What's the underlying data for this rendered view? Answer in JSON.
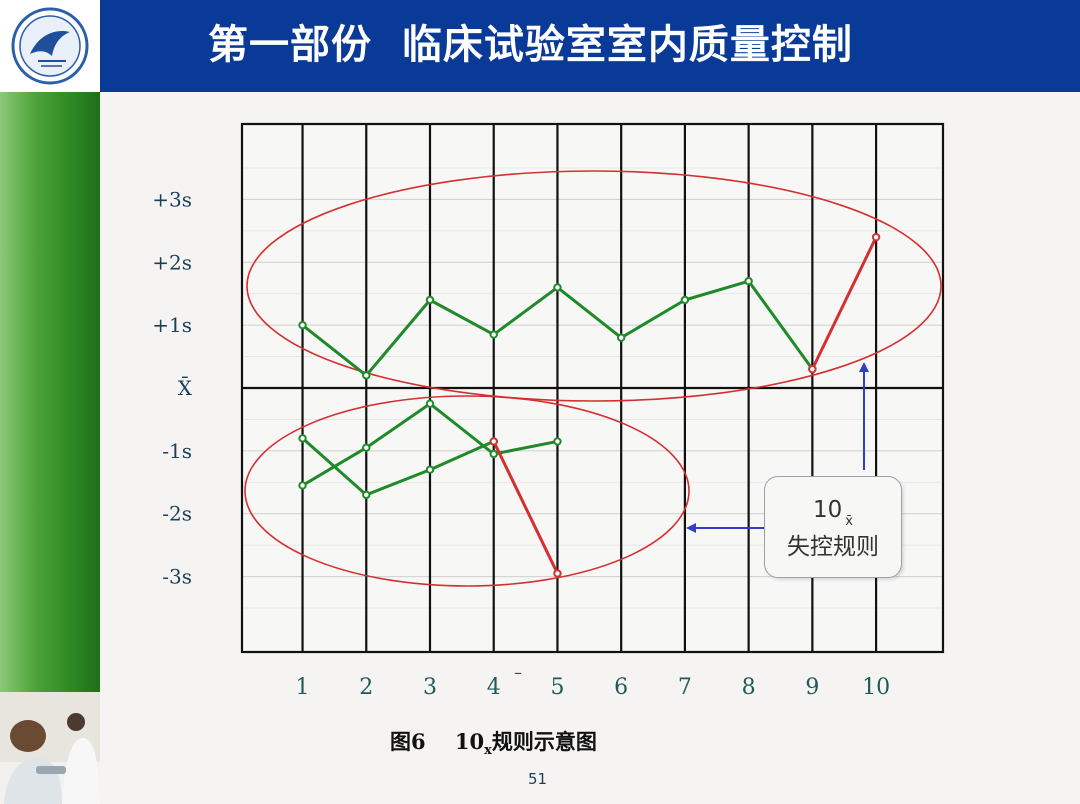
{
  "header": {
    "title": "第一部份  临床试验室室内质量控制",
    "logo_icon": "university-seal-logo"
  },
  "chart_data": {
    "type": "line",
    "x": [
      1,
      2,
      3,
      4,
      5,
      6,
      7,
      8,
      9,
      10
    ],
    "x_tick_labels": [
      "1",
      "2",
      "3",
      "4",
      "5",
      "6",
      "7",
      "8",
      "9",
      "10"
    ],
    "y_tick_labels": [
      "+3s",
      "+2s",
      "+1s",
      "X̄",
      "-1s",
      "-2s",
      "-3s"
    ],
    "y_tick_values": [
      3,
      2,
      1,
      0,
      -1,
      -2,
      -3
    ],
    "ylim": [
      -4.2,
      4.2
    ],
    "xlim": [
      0.05,
      11.05
    ],
    "grid": true,
    "series": [
      {
        "color": "#1f8a2a",
        "x": [
          1,
          2,
          3,
          4,
          5,
          6,
          7,
          8,
          9
        ],
        "y": [
          1.0,
          0.2,
          1.4,
          0.85,
          1.6,
          0.8,
          1.4,
          1.7,
          0.3
        ]
      },
      {
        "color": "#1f8a2a",
        "x": [
          1,
          2,
          3,
          4,
          5
        ],
        "y": [
          -1.55,
          -0.95,
          -0.25,
          -1.05,
          -0.85
        ]
      },
      {
        "color": "#1f8a2a",
        "x": [
          1,
          2,
          3,
          4
        ],
        "y": [
          -0.8,
          -1.7,
          -1.3,
          -0.85
        ]
      },
      {
        "color": "#d43030",
        "x": [
          9,
          10
        ],
        "y": [
          0.3,
          2.4
        ]
      },
      {
        "color": "#d43030",
        "x": [
          4,
          5
        ],
        "y": [
          -0.85,
          -2.95
        ]
      }
    ],
    "annotations": {
      "callout_main": "10",
      "callout_sub": "x̄",
      "callout_text": "失控规则"
    }
  },
  "caption": {
    "fig": "图6",
    "main": "10",
    "sub": "x",
    "rest": "规则示意图"
  },
  "page_number": "51",
  "colors": {
    "title_bar": "#0a3a98",
    "green_line": "#1f8a2a",
    "red_line": "#d43030",
    "ellipse": "#d43030",
    "arrow": "#2f3fc4"
  }
}
